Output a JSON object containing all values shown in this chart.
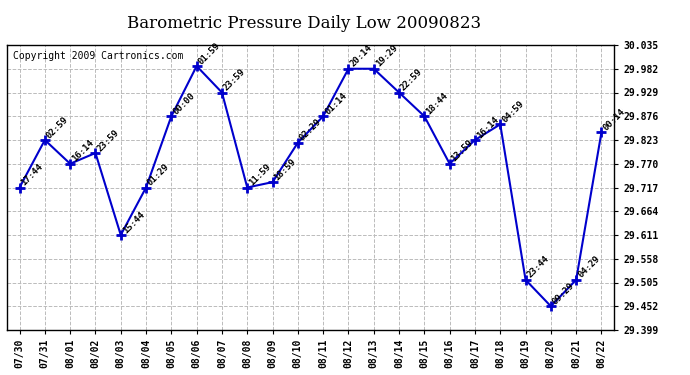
{
  "title": "Barometric Pressure Daily Low 20090823",
  "copyright": "Copyright 2009 Cartronics.com",
  "dates": [
    "07/30",
    "07/31",
    "08/01",
    "08/02",
    "08/03",
    "08/04",
    "08/05",
    "08/06",
    "08/07",
    "08/08",
    "08/09",
    "08/10",
    "08/11",
    "08/12",
    "08/13",
    "08/14",
    "08/15",
    "08/16",
    "08/17",
    "08/18",
    "08/19",
    "08/20",
    "08/21",
    "08/22"
  ],
  "values": [
    29.717,
    29.823,
    29.77,
    29.794,
    29.611,
    29.717,
    29.876,
    29.988,
    29.929,
    29.717,
    29.729,
    29.817,
    29.876,
    29.982,
    29.982,
    29.929,
    29.876,
    29.77,
    29.823,
    29.858,
    29.511,
    29.452,
    29.511,
    29.84
  ],
  "times": [
    "17:44",
    "02:59",
    "16:14",
    "23:59",
    "15:44",
    "01:29",
    "00:00",
    "01:59",
    "23:59",
    "11:59",
    "18:59",
    "02:29",
    "01:14",
    "20:14",
    "19:29",
    "22:59",
    "18:44",
    "13:59",
    "16:14",
    "04:59",
    "23:44",
    "09:29",
    "04:29",
    "00:14"
  ],
  "ylim": [
    29.399,
    30.035
  ],
  "yticks": [
    29.399,
    29.452,
    29.505,
    29.558,
    29.611,
    29.664,
    29.717,
    29.77,
    29.823,
    29.876,
    29.929,
    29.982,
    30.035
  ],
  "line_color": "#0000cc",
  "marker": "+",
  "bg_color": "#ffffff",
  "grid_color": "#bbbbbb",
  "title_fontsize": 12,
  "copyright_fontsize": 7,
  "tick_label_fontsize": 7,
  "annot_fontsize": 6.5
}
